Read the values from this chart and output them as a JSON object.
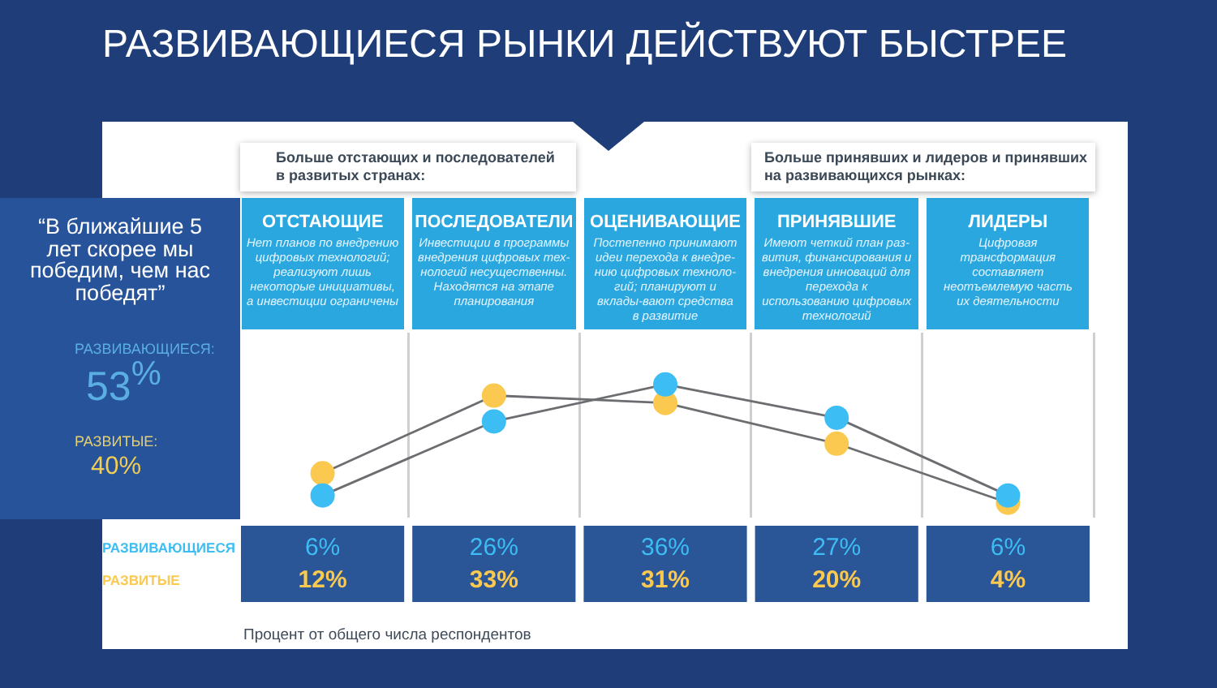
{
  "chart_data": {
    "type": "line",
    "title": "РАЗВИВАЮЩИЕСЯ РЫНКИ ДЕЙСТВУЮТ БЫСТРЕЕ",
    "categories": [
      "ОТСТАЮЩИЕ",
      "ПОСЛЕДОВАТЕЛИ",
      "ОЦЕНИВАЮЩИЕ",
      "ПРИНЯВШИЕ",
      "ЛИДЕРЫ"
    ],
    "series": [
      {
        "name": "РАЗВИВАЮЩИЕСЯ",
        "color": "#3cbdf4",
        "values": [
          6,
          26,
          36,
          27,
          6
        ],
        "value_labels": [
          "6%",
          "26%",
          "36%",
          "27%",
          "6%"
        ]
      },
      {
        "name": "РАЗВИТЫЕ",
        "color": "#fbc94f",
        "values": [
          12,
          33,
          31,
          20,
          4
        ],
        "value_labels": [
          "12%",
          "33%",
          "31%",
          "20%",
          "4%"
        ]
      }
    ],
    "annotations": [
      "Больше отстающих и последователей\nв развитых странах:",
      "Больше принявших и лидеров и принявших\nна развивающихся рынках:",
      "Нет планов по внедрению\nцифровых технологий;\nреализуют лишь\nнекоторые инициативы,\nа инвестиции ограничены",
      "Инвестиции в программы\nвнедрения цифровых тех-\nнологий несущественны.\nНаходятся на этапе\nпланирования",
      "Постепенно принимают\nидеи перехода к внедре-\nнию цифровых техноло-\nгий; планируют и\nвклады-вают средства\nв развитие",
      "Имеют четкий план раз-\nвития, финансирования и\nвнедрения инноваций для\nперехода к\nиспользованию цифровых\nтехнологий",
      "Цифровая\nтрансформация\nсоставляет\nнеотъемлемую часть\nих деятельности",
      "“В ближайшие 5\nлет скорее мы\nпобедим, чем нас\nпобедят”",
      "РАЗВИВАЮЩИЕСЯ:",
      "53$^{%}$",
      "РАЗВИТЫЕ:",
      "40%",
      "Процент от общего числа респондентов"
    ],
    "grid": "x",
    "legend": "bottom left",
    "tick_labels": "x",
    "marker": "circle",
    "line_style": "solid"
  }
}
